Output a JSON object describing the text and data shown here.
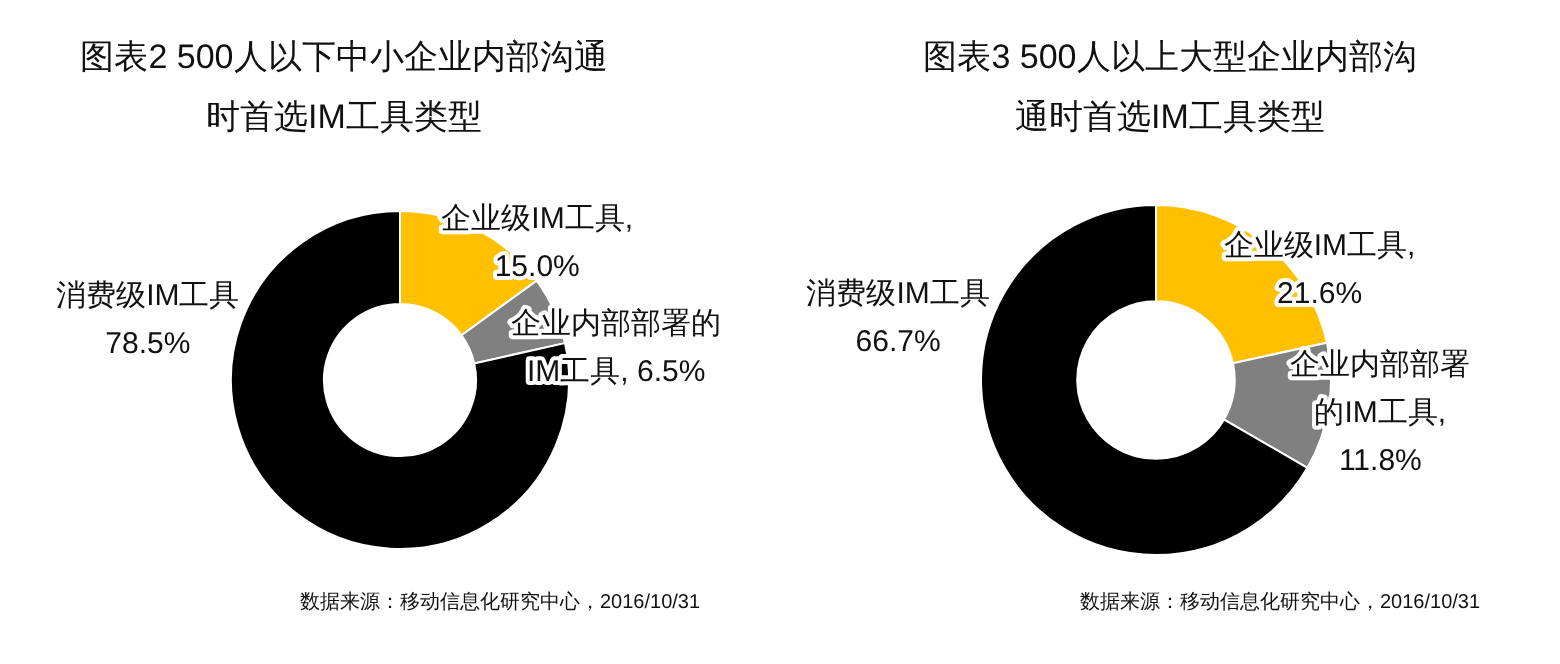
{
  "chart_data": [
    {
      "type": "donut",
      "title": "图表2 500人以下中小企业内部沟通时首选IM工具类型",
      "categories": [
        "企业级IM工具",
        "企业内部部署的IM工具",
        "消费级IM工具"
      ],
      "values": [
        15.0,
        6.5,
        78.5
      ],
      "colors": [
        "#ffc000",
        "#808080",
        "#000000"
      ],
      "value_labels": [
        ", 15.0%",
        ", 6.5%",
        "78.5%"
      ],
      "annotations": [
        "数据来源：移动信息化研究中心，2016/10/31"
      ],
      "legend": false
    },
    {
      "type": "donut",
      "title": "图表3 500人以上大型企业内部沟通时首选IM工具类型",
      "categories": [
        "企业级IM工具",
        "企业内部部署的IM工具",
        "消费级IM工具"
      ],
      "values": [
        21.6,
        11.8,
        66.7
      ],
      "colors": [
        "#ffc000",
        "#808080",
        "#000000"
      ],
      "value_labels": [
        ", 21.6%",
        ", 11.8%",
        "66.7%"
      ],
      "annotations": [
        "数据来源：移动信息化研究中心，2016/10/31"
      ],
      "legend": false
    }
  ]
}
